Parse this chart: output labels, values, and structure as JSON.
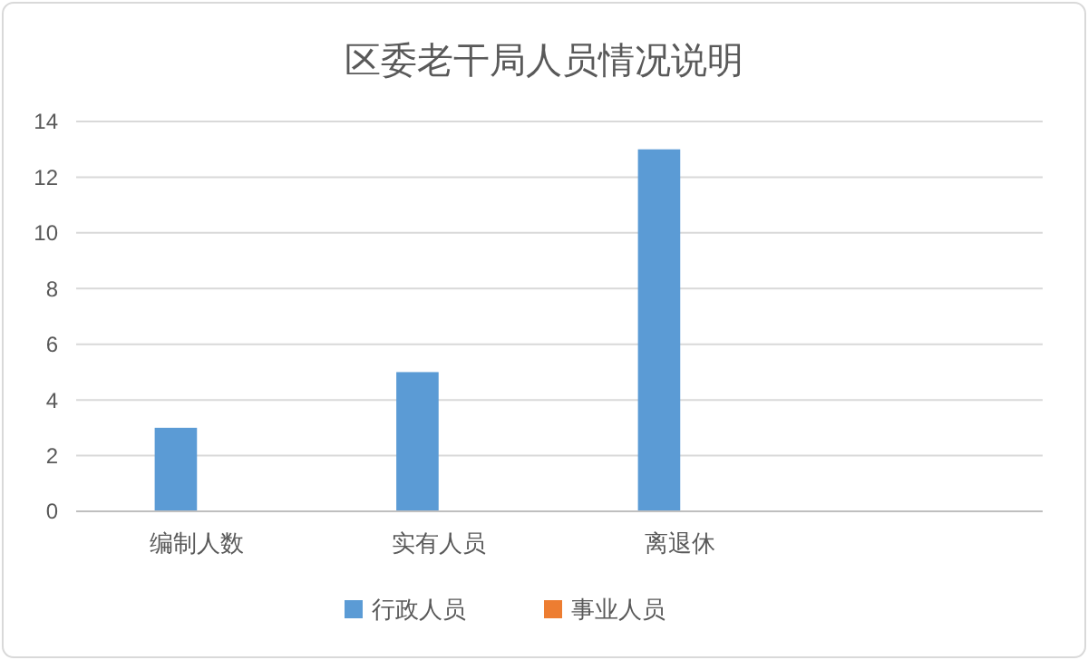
{
  "chart_data": {
    "type": "bar",
    "title": "区委老干局人员情况说明",
    "categories": [
      "编制人数",
      "实有人员",
      "离退休",
      null
    ],
    "series": [
      {
        "name": "行政人员",
        "color": "#5b9bd5",
        "values": [
          3,
          5,
          13,
          null
        ]
      },
      {
        "name": "事业人员",
        "color": "#ed7d31",
        "values": [
          null,
          null,
          null,
          null
        ]
      }
    ],
    "ylim": [
      0,
      14
    ],
    "yticks": [
      0,
      2,
      4,
      6,
      8,
      10,
      12,
      14
    ],
    "grid": "y",
    "legend": "bottom"
  }
}
